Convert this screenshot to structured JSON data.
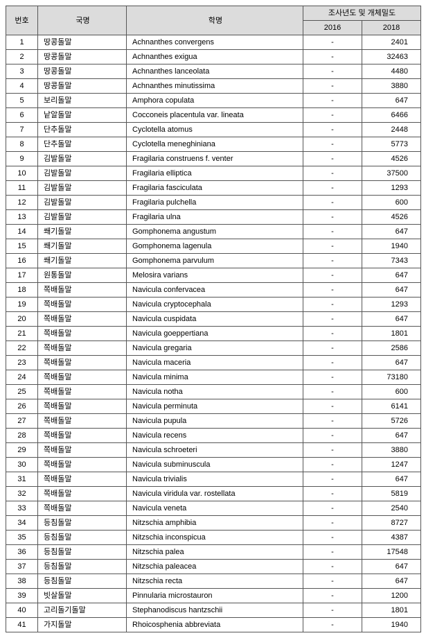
{
  "table": {
    "headers": {
      "no": "번호",
      "korean_name": "국명",
      "scientific_name": "학명",
      "survey_group": "조사년도 및 개체밀도",
      "year1": "2016",
      "year2": "2018"
    },
    "rows": [
      {
        "no": "1",
        "kn": "땅콩돌말",
        "sn": "Achnanthes convergens",
        "y1": "-",
        "y2": "2401"
      },
      {
        "no": "2",
        "kn": "땅콩돌말",
        "sn": "Achnanthes exigua",
        "y1": "-",
        "y2": "32463"
      },
      {
        "no": "3",
        "kn": "땅콩돌말",
        "sn": "Achnanthes lanceolata",
        "y1": "-",
        "y2": "4480"
      },
      {
        "no": "4",
        "kn": "땅콩돌말",
        "sn": "Achnanthes minutissima",
        "y1": "-",
        "y2": "3880"
      },
      {
        "no": "5",
        "kn": "보리돌말",
        "sn": "Amphora copulata",
        "y1": "-",
        "y2": "647"
      },
      {
        "no": "6",
        "kn": "낱알돌말",
        "sn": "Cocconeis placentula var. lineata",
        "y1": "-",
        "y2": "6466"
      },
      {
        "no": "7",
        "kn": "단추돌말",
        "sn": "Cyclotella atomus",
        "y1": "-",
        "y2": "2448"
      },
      {
        "no": "8",
        "kn": "단추돌말",
        "sn": "Cyclotella meneghiniana",
        "y1": "-",
        "y2": "5773"
      },
      {
        "no": "9",
        "kn": "김발돌말",
        "sn": "Fragilaria construens f. venter",
        "y1": "-",
        "y2": "4526"
      },
      {
        "no": "10",
        "kn": "김발돌말",
        "sn": "Fragilaria elliptica",
        "y1": "-",
        "y2": "37500"
      },
      {
        "no": "11",
        "kn": "김발돌말",
        "sn": "Fragilaria fasciculata",
        "y1": "-",
        "y2": "1293"
      },
      {
        "no": "12",
        "kn": "김발돌말",
        "sn": "Fragilaria pulchella",
        "y1": "-",
        "y2": "600"
      },
      {
        "no": "13",
        "kn": "김발돌말",
        "sn": "Fragilaria ulna",
        "y1": "-",
        "y2": "4526"
      },
      {
        "no": "14",
        "kn": "쐐기돌말",
        "sn": "Gomphonema angustum",
        "y1": "-",
        "y2": "647"
      },
      {
        "no": "15",
        "kn": "쐐기돌말",
        "sn": "Gomphonema lagenula",
        "y1": "-",
        "y2": "1940"
      },
      {
        "no": "16",
        "kn": "쐐기돌말",
        "sn": "Gomphonema parvulum",
        "y1": "-",
        "y2": "7343"
      },
      {
        "no": "17",
        "kn": "원통돌말",
        "sn": "Melosira varians",
        "y1": "-",
        "y2": "647"
      },
      {
        "no": "18",
        "kn": "쪽배돌말",
        "sn": "Navicula confervacea",
        "y1": "-",
        "y2": "647"
      },
      {
        "no": "19",
        "kn": "쪽배돌말",
        "sn": "Navicula cryptocephala",
        "y1": "-",
        "y2": "1293"
      },
      {
        "no": "20",
        "kn": "쪽배돌말",
        "sn": "Navicula cuspidata",
        "y1": "-",
        "y2": "647"
      },
      {
        "no": "21",
        "kn": "쪽배돌말",
        "sn": "Navicula goeppertiana",
        "y1": "-",
        "y2": "1801"
      },
      {
        "no": "22",
        "kn": "쪽배돌말",
        "sn": "Navicula gregaria",
        "y1": "-",
        "y2": "2586"
      },
      {
        "no": "23",
        "kn": "쪽배돌말",
        "sn": "Navicula maceria",
        "y1": "-",
        "y2": "647"
      },
      {
        "no": "24",
        "kn": "쪽배돌말",
        "sn": "Navicula minima",
        "y1": "-",
        "y2": "73180"
      },
      {
        "no": "25",
        "kn": "쪽배돌말",
        "sn": "Navicula notha",
        "y1": "-",
        "y2": "600"
      },
      {
        "no": "26",
        "kn": "쪽배돌말",
        "sn": "Navicula perminuta",
        "y1": "-",
        "y2": "6141"
      },
      {
        "no": "27",
        "kn": "쪽배돌말",
        "sn": "Navicula pupula",
        "y1": "-",
        "y2": "5726"
      },
      {
        "no": "28",
        "kn": "쪽배돌말",
        "sn": "Navicula recens",
        "y1": "-",
        "y2": "647"
      },
      {
        "no": "29",
        "kn": "쪽배돌말",
        "sn": "Navicula schroeteri",
        "y1": "-",
        "y2": "3880"
      },
      {
        "no": "30",
        "kn": "쪽배돌말",
        "sn": "Navicula subminuscula",
        "y1": "-",
        "y2": "1247"
      },
      {
        "no": "31",
        "kn": "쪽배돌말",
        "sn": "Navicula trivialis",
        "y1": "-",
        "y2": "647"
      },
      {
        "no": "32",
        "kn": "쪽배돌말",
        "sn": "Navicula viridula var. rostellata",
        "y1": "-",
        "y2": "5819"
      },
      {
        "no": "33",
        "kn": "쪽배돌말",
        "sn": "Navicula veneta",
        "y1": "-",
        "y2": "2540"
      },
      {
        "no": "34",
        "kn": "등침돌말",
        "sn": "Nitzschia amphibia",
        "y1": "-",
        "y2": "8727"
      },
      {
        "no": "35",
        "kn": "등침돌말",
        "sn": "Nitzschia inconspicua",
        "y1": "-",
        "y2": "4387"
      },
      {
        "no": "36",
        "kn": "등침돌말",
        "sn": "Nitzschia palea",
        "y1": "-",
        "y2": "17548"
      },
      {
        "no": "37",
        "kn": "등침돌말",
        "sn": "Nitzschia paleacea",
        "y1": "-",
        "y2": "647"
      },
      {
        "no": "38",
        "kn": "등침돌말",
        "sn": "Nitzschia recta",
        "y1": "-",
        "y2": "647"
      },
      {
        "no": "39",
        "kn": "빗살돌말",
        "sn": "Pinnularia microstauron",
        "y1": "-",
        "y2": "1200"
      },
      {
        "no": "40",
        "kn": "고리돌기돌말",
        "sn": "Stephanodiscus hantzschii",
        "y1": "-",
        "y2": "1801"
      },
      {
        "no": "41",
        "kn": "가지돌말",
        "sn": "Rhoicosphenia abbreviata",
        "y1": "-",
        "y2": "1940"
      }
    ]
  }
}
